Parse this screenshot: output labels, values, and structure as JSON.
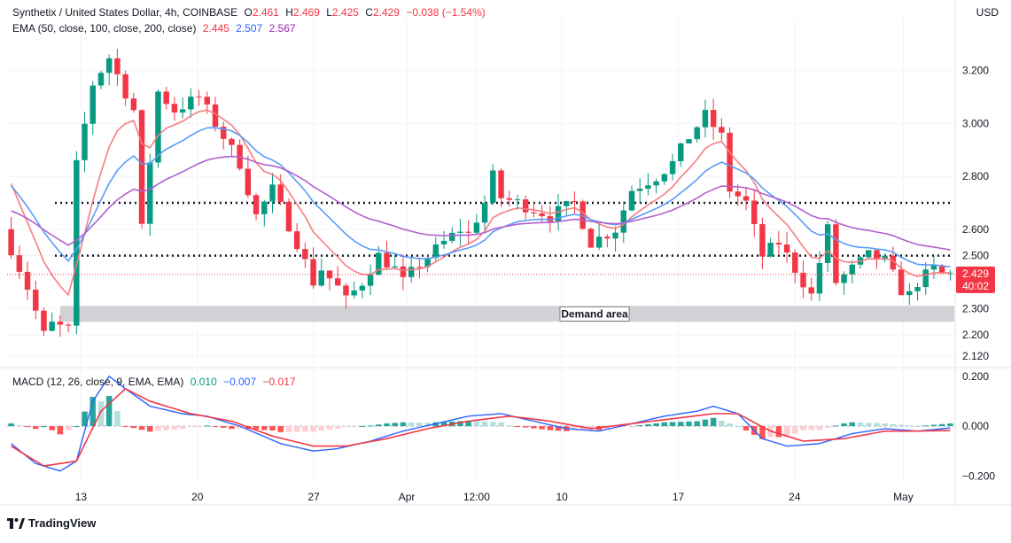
{
  "header": {
    "symbol": "Synthetix / United States Dollar, 4h, COINBASE",
    "o_label": "O",
    "o": "2.461",
    "h_label": "H",
    "h": "2.469",
    "l_label": "L",
    "l": "2.425",
    "c_label": "C",
    "c": "2.429",
    "change": "−0.038 (−1.54%)",
    "ema_label": "EMA (50, close, 100, close, 200, close)",
    "ema50": "2.445",
    "ema100": "2.507",
    "ema200": "2.567",
    "currency": "USD"
  },
  "price_badge": {
    "price": "2.429",
    "countdown": "40:02"
  },
  "demand_label": "Demand area",
  "macd_header": {
    "label": "MACD (12, 26, close, 9, EMA, EMA)",
    "hist": "0.010",
    "macd": "−0.007",
    "signal": "−0.017"
  },
  "brand": "TradingView",
  "colors": {
    "up": "#089981",
    "down": "#f23645",
    "ema50": "#f77c80",
    "ema100": "#5b9cf6",
    "ema200": "#b05fcf",
    "macd": "#2962ff",
    "signal": "#f23645",
    "demand": "#c9cacf"
  },
  "chart_data": [
    {
      "type": "candlestick",
      "title": "Synthetix / United States Dollar, 4h, COINBASE",
      "x_ticks": [
        "13",
        "20",
        "27",
        "Apr",
        "12:00",
        "10",
        "17",
        "24",
        "May"
      ],
      "y_ticks": [
        "3.200",
        "3.000",
        "2.800",
        "2.600",
        "2.500",
        "2.300",
        "2.200",
        "2.120"
      ],
      "ylim": [
        2.08,
        3.4
      ],
      "price_path": [
        [
          0,
          2.6
        ],
        [
          3,
          2.38
        ],
        [
          5,
          2.2
        ],
        [
          6,
          2.24
        ],
        [
          8,
          2.22
        ],
        [
          9,
          2.84
        ],
        [
          11,
          3.15
        ],
        [
          13,
          3.25
        ],
        [
          16,
          3.05
        ],
        [
          17,
          2.6
        ],
        [
          19,
          3.12
        ],
        [
          21,
          3.05
        ],
        [
          24,
          3.1
        ],
        [
          27,
          2.95
        ],
        [
          29,
          2.85
        ],
        [
          31,
          2.65
        ],
        [
          33,
          2.75
        ],
        [
          36,
          2.55
        ],
        [
          38,
          2.4
        ],
        [
          39,
          2.45
        ],
        [
          41,
          2.38
        ],
        [
          42,
          2.33
        ],
        [
          44,
          2.4
        ],
        [
          46,
          2.5
        ],
        [
          48,
          2.45
        ],
        [
          49,
          2.4
        ],
        [
          51,
          2.47
        ],
        [
          54,
          2.55
        ],
        [
          56,
          2.6
        ],
        [
          57,
          2.58
        ],
        [
          59,
          2.7
        ],
        [
          60,
          2.8
        ],
        [
          61,
          2.72
        ],
        [
          63,
          2.7
        ],
        [
          67,
          2.65
        ],
        [
          70,
          2.7
        ],
        [
          72,
          2.55
        ],
        [
          75,
          2.6
        ],
        [
          77,
          2.75
        ],
        [
          80,
          2.8
        ],
        [
          82,
          2.85
        ],
        [
          84,
          2.95
        ],
        [
          86,
          3.03
        ],
        [
          88,
          2.95
        ],
        [
          89,
          2.75
        ],
        [
          91,
          2.7
        ],
        [
          93,
          2.5
        ],
        [
          95,
          2.55
        ],
        [
          97,
          2.45
        ],
        [
          99,
          2.35
        ],
        [
          101,
          2.6
        ],
        [
          102,
          2.4
        ],
        [
          104,
          2.45
        ],
        [
          106,
          2.5
        ],
        [
          108,
          2.48
        ],
        [
          110,
          2.37
        ],
        [
          111,
          2.35
        ],
        [
          112,
          2.4
        ],
        [
          114,
          2.45
        ],
        [
          115,
          2.43
        ]
      ],
      "series": [
        {
          "name": "EMA 50",
          "value": 2.445
        },
        {
          "name": "EMA 100",
          "value": 2.507
        },
        {
          "name": "EMA 200",
          "value": 2.567
        }
      ],
      "horizontal_levels": [
        2.7,
        2.5
      ],
      "demand_zone": [
        2.25,
        2.31
      ],
      "last_price": 2.429
    },
    {
      "type": "macd",
      "title": "MACD (12, 26, close, 9, EMA, EMA)",
      "y_ticks": [
        "0.200",
        "0.000",
        "−0.200"
      ],
      "ylim": [
        -0.22,
        0.21
      ],
      "macd_path": [
        [
          0,
          -0.07
        ],
        [
          3,
          -0.15
        ],
        [
          6,
          -0.18
        ],
        [
          8,
          -0.14
        ],
        [
          10,
          0.1
        ],
        [
          12,
          0.2
        ],
        [
          14,
          0.15
        ],
        [
          17,
          0.08
        ],
        [
          21,
          0.05
        ],
        [
          24,
          0.04
        ],
        [
          28,
          0.0
        ],
        [
          33,
          -0.07
        ],
        [
          37,
          -0.1
        ],
        [
          40,
          -0.09
        ],
        [
          44,
          -0.06
        ],
        [
          48,
          -0.02
        ],
        [
          52,
          0.01
        ],
        [
          56,
          0.04
        ],
        [
          60,
          0.05
        ],
        [
          64,
          0.02
        ],
        [
          68,
          -0.01
        ],
        [
          72,
          -0.02
        ],
        [
          76,
          0.01
        ],
        [
          80,
          0.04
        ],
        [
          84,
          0.06
        ],
        [
          86,
          0.08
        ],
        [
          89,
          0.05
        ],
        [
          92,
          -0.05
        ],
        [
          95,
          -0.08
        ],
        [
          99,
          -0.07
        ],
        [
          103,
          -0.03
        ],
        [
          107,
          -0.01
        ],
        [
          111,
          -0.02
        ],
        [
          115,
          -0.007
        ]
      ],
      "signal_path": [
        [
          0,
          -0.08
        ],
        [
          4,
          -0.16
        ],
        [
          8,
          -0.14
        ],
        [
          11,
          0.06
        ],
        [
          14,
          0.15
        ],
        [
          17,
          0.1
        ],
        [
          22,
          0.05
        ],
        [
          27,
          0.02
        ],
        [
          32,
          -0.04
        ],
        [
          37,
          -0.08
        ],
        [
          41,
          -0.08
        ],
        [
          46,
          -0.05
        ],
        [
          51,
          -0.01
        ],
        [
          56,
          0.02
        ],
        [
          61,
          0.04
        ],
        [
          66,
          0.02
        ],
        [
          71,
          -0.01
        ],
        [
          76,
          0.01
        ],
        [
          81,
          0.03
        ],
        [
          86,
          0.05
        ],
        [
          89,
          0.05
        ],
        [
          93,
          -0.02
        ],
        [
          97,
          -0.06
        ],
        [
          102,
          -0.05
        ],
        [
          107,
          -0.02
        ],
        [
          111,
          -0.02
        ],
        [
          115,
          -0.017
        ]
      ],
      "last": {
        "hist": 0.01,
        "macd": -0.007,
        "signal": -0.017
      }
    }
  ]
}
